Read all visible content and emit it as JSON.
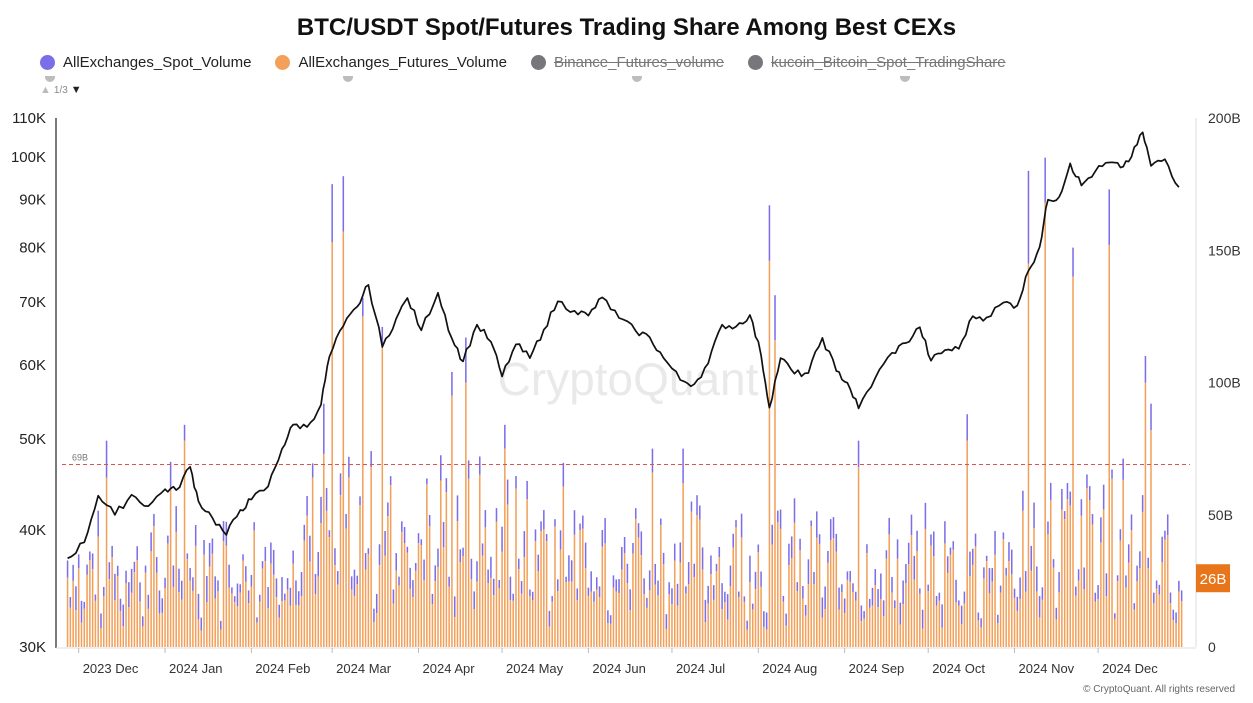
{
  "chart_data": {
    "type": "bar",
    "title": "BTC/USDT Spot/Futures Trading Share Among Best CEXs",
    "legend": {
      "placement": "top-left",
      "items": [
        {
          "label": "AllExchanges_Spot_Volume",
          "color": "#7b6ee8",
          "enabled": true
        },
        {
          "label": "AllExchanges_Futures_Volume",
          "color": "#f2a05a",
          "enabled": true
        },
        {
          "label": "Binance_Futures_volume",
          "color": "#77767b",
          "enabled": false
        },
        {
          "label": "kucoin_Bitcoin_Spot_TradingShare",
          "color": "#77767b",
          "enabled": false
        }
      ],
      "pager": "1/3"
    },
    "x_axis": {
      "ticks": [
        "2023 Dec",
        "2024 Jan",
        "2024 Feb",
        "2024 Mar",
        "2024 Apr",
        "2024 May",
        "2024 Jun",
        "2024 Jul",
        "2024 Aug",
        "2024 Sep",
        "2024 Oct",
        "2024 Nov",
        "2024 Dec"
      ]
    },
    "y_left": {
      "scale": "log",
      "range": [
        30000,
        110000
      ],
      "ticks": [
        "30K",
        "40K",
        "50K",
        "60K",
        "70K",
        "80K",
        "90K",
        "100K",
        "110K"
      ],
      "tick_values": [
        30000,
        40000,
        50000,
        60000,
        70000,
        80000,
        90000,
        100000,
        110000
      ]
    },
    "y_right": {
      "scale": "linear",
      "range": [
        0,
        200
      ],
      "unit": "B",
      "ticks": [
        "0",
        "50B",
        "100B",
        "150B",
        "200B"
      ],
      "tick_values": [
        0,
        50,
        100,
        150,
        200
      ]
    },
    "reference_line": {
      "value": 69,
      "label": "69B",
      "color": "#d9534f"
    },
    "last_value_badge": {
      "label": "26B",
      "value": 26,
      "color": "#e8751a"
    },
    "price_series": {
      "name": "",
      "color": "#111111",
      "x": [
        "2023-11-27",
        "2023-12-03",
        "2023-12-08",
        "2023-12-14",
        "2023-12-20",
        "2023-12-26",
        "2024-01-01",
        "2024-01-05",
        "2024-01-10",
        "2024-01-13",
        "2024-01-18",
        "2024-01-23",
        "2024-01-28",
        "2024-02-01",
        "2024-02-07",
        "2024-02-12",
        "2024-02-16",
        "2024-02-21",
        "2024-02-26",
        "2024-02-29",
        "2024-03-05",
        "2024-03-10",
        "2024-03-14",
        "2024-03-19",
        "2024-03-24",
        "2024-03-28",
        "2024-04-02",
        "2024-04-08",
        "2024-04-13",
        "2024-04-17",
        "2024-04-22",
        "2024-04-27",
        "2024-05-01",
        "2024-05-06",
        "2024-05-11",
        "2024-05-16",
        "2024-05-21",
        "2024-05-27",
        "2024-06-01",
        "2024-06-06",
        "2024-06-12",
        "2024-06-18",
        "2024-06-23",
        "2024-06-28",
        "2024-07-04",
        "2024-07-09",
        "2024-07-14",
        "2024-07-19",
        "2024-07-24",
        "2024-07-29",
        "2024-08-02",
        "2024-08-05",
        "2024-08-09",
        "2024-08-14",
        "2024-08-19",
        "2024-08-24",
        "2024-08-29",
        "2024-09-02",
        "2024-09-06",
        "2024-09-12",
        "2024-09-18",
        "2024-09-23",
        "2024-09-28",
        "2024-10-02",
        "2024-10-07",
        "2024-10-12",
        "2024-10-17",
        "2024-10-22",
        "2024-10-28",
        "2024-11-02",
        "2024-11-06",
        "2024-11-10",
        "2024-11-13",
        "2024-11-17",
        "2024-11-21",
        "2024-11-25",
        "2024-11-30",
        "2024-12-05",
        "2024-12-09",
        "2024-12-13",
        "2024-12-17",
        "2024-12-20",
        "2024-12-25",
        "2024-12-30"
      ],
      "values": [
        37300,
        38800,
        43500,
        41500,
        43600,
        42400,
        44200,
        44100,
        46700,
        42900,
        41200,
        39500,
        42000,
        43100,
        44500,
        48800,
        51800,
        51500,
        54400,
        61200,
        66000,
        69200,
        73000,
        62700,
        67200,
        70700,
        65300,
        71600,
        64000,
        60500,
        66200,
        63500,
        58300,
        63100,
        61000,
        65400,
        70100,
        68500,
        67700,
        70800,
        67300,
        65200,
        64200,
        61000,
        57800,
        57200,
        60200,
        66200,
        65900,
        67800,
        61400,
        54000,
        61000,
        58700,
        58800,
        64100,
        59100,
        57400,
        53900,
        58100,
        61800,
        63300,
        65800,
        60600,
        62200,
        62400,
        67600,
        67400,
        69900,
        69400,
        75600,
        80100,
        90000,
        90600,
        98400,
        93200,
        96500,
        98600,
        97400,
        100000,
        106200,
        97800,
        99400,
        92800
      ]
    },
    "bar_series": [
      {
        "name": "AllExchanges_Spot_Volume",
        "color": "#7b6ee8",
        "unit": "B"
      },
      {
        "name": "AllExchanges_Futures_Volume",
        "color": "#f2a05a",
        "unit": "B"
      }
    ],
    "bar_peaks": {
      "x": [
        "2023-12-11",
        "2024-01-03",
        "2024-01-08",
        "2024-02-27",
        "2024-03-01",
        "2024-03-05",
        "2024-03-12",
        "2024-03-19",
        "2024-04-13",
        "2024-04-18",
        "2024-05-02",
        "2024-06-24",
        "2024-07-05",
        "2024-08-05",
        "2024-08-07",
        "2024-09-06",
        "2024-10-15",
        "2024-11-06",
        "2024-11-12",
        "2024-11-22",
        "2024-12-05",
        "2024-12-18",
        "2024-12-20"
      ],
      "futures": [
        64,
        60,
        78,
        73,
        153,
        157,
        125,
        113,
        95,
        100,
        75,
        66,
        62,
        146,
        116,
        68,
        78,
        145,
        168,
        140,
        152,
        100,
        82
      ],
      "spot": [
        78,
        70,
        84,
        92,
        175,
        178,
        132,
        121,
        104,
        117,
        84,
        75,
        75,
        167,
        133,
        78,
        88,
        180,
        185,
        151,
        173,
        110,
        92
      ]
    }
  },
  "watermark": "CryptoQuant",
  "footer": "© CryptoQuant. All rights reserved"
}
